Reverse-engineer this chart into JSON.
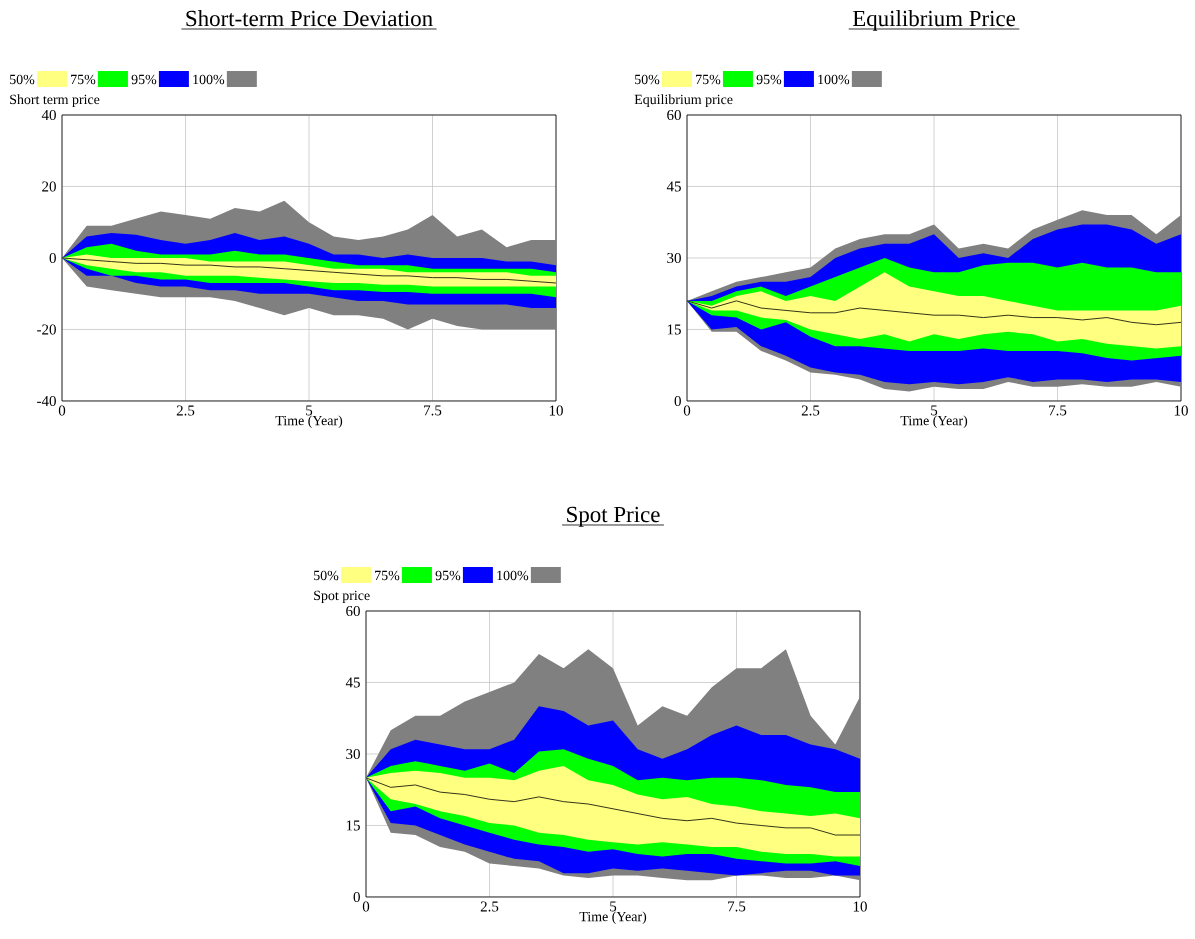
{
  "chart_data": [
    {
      "type": "line",
      "title": "Short-term Price Deviation",
      "ylabel": "Short term price",
      "xlabel": "Time (Year)",
      "x": [
        0,
        0.5,
        1,
        1.5,
        2,
        2.5,
        3,
        3.5,
        4,
        4.5,
        5,
        5.5,
        6,
        6.5,
        7,
        7.5,
        8,
        8.5,
        9,
        9.5,
        10
      ],
      "xlim": [
        0,
        10
      ],
      "ylim": [
        -40,
        40
      ],
      "xticks": [
        0,
        2.5,
        5,
        7.5,
        10
      ],
      "yticks": [
        -40,
        -20,
        0,
        20,
        40
      ],
      "grid": true,
      "legend": "top left",
      "series": [
        {
          "name": "50%",
          "color": "#ffff80",
          "values": [
            null,
            null,
            null,
            null,
            null,
            null,
            null,
            null,
            null,
            null,
            null,
            null,
            null,
            null,
            null,
            null,
            null,
            null,
            null,
            null,
            null
          ],
          "upper": [
            0,
            1,
            0,
            0,
            0,
            0,
            -1,
            -1,
            -1,
            -1,
            -2,
            -3,
            -3,
            -3,
            -4,
            -4,
            -4,
            -4,
            -4,
            -5,
            -5
          ],
          "lower": [
            0,
            -2,
            -3,
            -4,
            -4,
            -5,
            -5,
            -5,
            -5.5,
            -6,
            -6.5,
            -7,
            -7,
            -7.5,
            -7.5,
            -8,
            -8,
            -8,
            -8,
            -8,
            -8
          ]
        },
        {
          "name": "75%",
          "color": "#00ff00",
          "values": [
            null,
            null,
            null,
            null,
            null,
            null,
            null,
            null,
            null,
            null,
            null,
            null,
            null,
            null,
            null,
            null,
            null,
            null,
            null,
            null,
            null
          ],
          "upper": [
            0,
            3,
            4,
            2,
            1,
            1,
            1,
            2,
            1,
            1,
            0,
            -1,
            -2,
            -2,
            -2,
            -3,
            -3,
            -3,
            -3,
            -3,
            -4
          ],
          "lower": [
            0,
            -3,
            -5,
            -5,
            -6,
            -6,
            -7,
            -7,
            -7,
            -7,
            -8,
            -9,
            -9,
            -9.5,
            -9.5,
            -10,
            -10,
            -10,
            -10,
            -10,
            -11
          ]
        },
        {
          "name": "95%",
          "color": "#0000ff",
          "values": [
            null,
            null,
            null,
            null,
            null,
            null,
            null,
            null,
            null,
            null,
            null,
            null,
            null,
            null,
            null,
            null,
            null,
            null,
            null,
            null,
            null
          ],
          "upper": [
            0,
            6,
            7,
            6.5,
            5,
            4,
            5,
            7,
            5,
            6,
            4,
            1,
            1,
            0,
            1,
            0,
            0,
            0,
            -1,
            -1,
            -2
          ],
          "lower": [
            0,
            -5,
            -5,
            -7,
            -8,
            -8,
            -9,
            -9,
            -10,
            -10,
            -10,
            -11,
            -12,
            -12,
            -13,
            -13,
            -13,
            -13,
            -13,
            -14,
            -14
          ]
        },
        {
          "name": "100%",
          "color": "#808080",
          "values": [
            null,
            null,
            null,
            null,
            null,
            null,
            null,
            null,
            null,
            null,
            null,
            null,
            null,
            null,
            null,
            null,
            null,
            null,
            null,
            null,
            null
          ],
          "upper": [
            0,
            9,
            9,
            11,
            13,
            12,
            11,
            14,
            13,
            16,
            10,
            6,
            5,
            6,
            8,
            12,
            6,
            8,
            3,
            5,
            5
          ],
          "lower": [
            0,
            -8,
            -9,
            -10,
            -11,
            -11,
            -11,
            -12,
            -14,
            -16,
            -14,
            -16,
            -16,
            -17,
            -20,
            -17,
            -19,
            -20,
            -20,
            -20,
            -20
          ]
        },
        {
          "color": "#000000",
          "values": [
            0,
            -0.5,
            -1,
            -1.5,
            -1.5,
            -2,
            -2,
            -2.5,
            -2.5,
            -3,
            -3.5,
            -4,
            -4.5,
            -5,
            -5,
            -5.5,
            -5.5,
            -6,
            -6,
            -6.5,
            -7
          ]
        }
      ]
    },
    {
      "type": "line",
      "title": "Equilibrium Price",
      "ylabel": "Equilibrium price",
      "xlabel": "Time (Year)",
      "x": [
        0,
        0.5,
        1,
        1.5,
        2,
        2.5,
        3,
        3.5,
        4,
        4.5,
        5,
        5.5,
        6,
        6.5,
        7,
        7.5,
        8,
        8.5,
        9,
        9.5,
        10
      ],
      "xlim": [
        0,
        10
      ],
      "ylim": [
        0,
        60
      ],
      "xticks": [
        0,
        2.5,
        5,
        7.5,
        10
      ],
      "yticks": [
        0,
        15,
        30,
        45,
        60
      ],
      "grid": true,
      "legend": "top left",
      "series": [
        {
          "name": "50%",
          "color": "#ffff80",
          "values": [
            null,
            null,
            null,
            null,
            null,
            null,
            null,
            null,
            null,
            null,
            null,
            null,
            null,
            null,
            null,
            null,
            null,
            null,
            null,
            null,
            null
          ],
          "upper": [
            21,
            20,
            22,
            23,
            21,
            22,
            21,
            24,
            27,
            24,
            23,
            22,
            22,
            21,
            20,
            19,
            19,
            19,
            19,
            19,
            20
          ],
          "lower": [
            21,
            19,
            19,
            17.5,
            17,
            15,
            14,
            13,
            14,
            12.5,
            14,
            13,
            14,
            14.5,
            14,
            12.5,
            13,
            12,
            11.5,
            11,
            11.5
          ]
        },
        {
          "name": "75%",
          "color": "#00ff00",
          "values": [
            null,
            null,
            null,
            null,
            null,
            null,
            null,
            null,
            null,
            null,
            null,
            null,
            null,
            null,
            null,
            null,
            null,
            null,
            null,
            null,
            null
          ],
          "upper": [
            21,
            21,
            23,
            24,
            22,
            24,
            26,
            28,
            30,
            28,
            27,
            27,
            28.5,
            29,
            29,
            28,
            29,
            28,
            28,
            27,
            27
          ],
          "lower": [
            21,
            18,
            17.5,
            15,
            16.5,
            13.5,
            11.5,
            11.5,
            11,
            10.5,
            10.5,
            10.5,
            11,
            10.5,
            10.5,
            10.5,
            10,
            9,
            8.5,
            9,
            9.5
          ]
        },
        {
          "name": "95%",
          "color": "#0000ff",
          "values": [
            null,
            null,
            null,
            null,
            null,
            null,
            null,
            null,
            null,
            null,
            null,
            null,
            null,
            null,
            null,
            null,
            null,
            null,
            null,
            null,
            null
          ],
          "upper": [
            21,
            22,
            24,
            25,
            25,
            26,
            30,
            32,
            33,
            33,
            35,
            30,
            31,
            30,
            34,
            36,
            37,
            37,
            36,
            33,
            35
          ],
          "lower": [
            21,
            15,
            15.5,
            11.5,
            9.5,
            7,
            6,
            5.5,
            4,
            3.5,
            4,
            3.5,
            4,
            5,
            4,
            4.5,
            4.5,
            4,
            4.5,
            4.5,
            4
          ]
        },
        {
          "name": "100%",
          "color": "#808080",
          "values": [
            null,
            null,
            null,
            null,
            null,
            null,
            null,
            null,
            null,
            null,
            null,
            null,
            null,
            null,
            null,
            null,
            null,
            null,
            null,
            null,
            null
          ],
          "upper": [
            21,
            23,
            25,
            26,
            27,
            28,
            32,
            34,
            35,
            35,
            37,
            32,
            33,
            32,
            36,
            38,
            40,
            39,
            39,
            35,
            39
          ],
          "lower": [
            21,
            14.5,
            14.5,
            10.5,
            8.5,
            6,
            5.5,
            4.5,
            2.5,
            2,
            3,
            2.5,
            2.5,
            4,
            3,
            3,
            3.5,
            3,
            3,
            4,
            3
          ]
        },
        {
          "color": "#000000",
          "values": [
            21,
            19.5,
            21,
            19.5,
            19,
            18.5,
            18.5,
            19.5,
            19,
            18.5,
            18,
            18,
            17.5,
            18,
            17.5,
            17.5,
            17,
            17.5,
            16.5,
            16,
            16.5
          ]
        }
      ]
    },
    {
      "type": "line",
      "title": "Spot Price",
      "ylabel": "Spot price",
      "xlabel": "Time (Year)",
      "x": [
        0,
        0.5,
        1,
        1.5,
        2,
        2.5,
        3,
        3.5,
        4,
        4.5,
        5,
        5.5,
        6,
        6.5,
        7,
        7.5,
        8,
        8.5,
        9,
        9.5,
        10
      ],
      "xlim": [
        0,
        10
      ],
      "ylim": [
        0,
        60
      ],
      "xticks": [
        0,
        2.5,
        5,
        7.5,
        10
      ],
      "yticks": [
        0,
        15,
        30,
        45,
        60
      ],
      "grid": true,
      "legend": "top left",
      "series": [
        {
          "name": "50%",
          "color": "#ffff80",
          "values": [
            null,
            null,
            null,
            null,
            null,
            null,
            null,
            null,
            null,
            null,
            null,
            null,
            null,
            null,
            null,
            null,
            null,
            null,
            null,
            null,
            null
          ],
          "upper": [
            25,
            26,
            26.5,
            26,
            25,
            25,
            24.5,
            26.5,
            27.5,
            24.5,
            23.5,
            21.5,
            20.5,
            21,
            19.5,
            19,
            18,
            17.5,
            17,
            17.5,
            16.5
          ],
          "lower": [
            25,
            20.5,
            19.5,
            18,
            17,
            15.5,
            15,
            13.5,
            13,
            12,
            11.5,
            11,
            11.5,
            11,
            10.5,
            10.5,
            9.5,
            9,
            9,
            8.5,
            8.5
          ]
        },
        {
          "name": "75%",
          "color": "#00ff00",
          "values": [
            null,
            null,
            null,
            null,
            null,
            null,
            null,
            null,
            null,
            null,
            null,
            null,
            null,
            null,
            null,
            null,
            null,
            null,
            null,
            null,
            null
          ],
          "upper": [
            25,
            27.5,
            28.5,
            27.5,
            26.5,
            28,
            26,
            30.5,
            31,
            29,
            27.5,
            24.5,
            25,
            24.5,
            25,
            25,
            24.5,
            23.5,
            23,
            22,
            22
          ],
          "lower": [
            25,
            18,
            19,
            16.5,
            15,
            13.5,
            12,
            11,
            10.5,
            9.5,
            10,
            9,
            8.5,
            9,
            9,
            8,
            7.5,
            7,
            7,
            7.5,
            6.5
          ]
        },
        {
          "name": "95%",
          "color": "#0000ff",
          "values": [
            null,
            null,
            null,
            null,
            null,
            null,
            null,
            null,
            null,
            null,
            null,
            null,
            null,
            null,
            null,
            null,
            null,
            null,
            null,
            null,
            null
          ],
          "upper": [
            25,
            31,
            33,
            32,
            31,
            31,
            33,
            40,
            39,
            36,
            37,
            31,
            29,
            31,
            34,
            36,
            34,
            34,
            32,
            31,
            29
          ],
          "lower": [
            25,
            15.5,
            15,
            13,
            11,
            9.5,
            8,
            7.5,
            5,
            5,
            6,
            5.5,
            6,
            5.5,
            5,
            4.5,
            5,
            5.5,
            5.5,
            4.5,
            4.5
          ]
        },
        {
          "name": "100%",
          "color": "#808080",
          "values": [
            null,
            null,
            null,
            null,
            null,
            null,
            null,
            null,
            null,
            null,
            null,
            null,
            null,
            null,
            null,
            null,
            null,
            null,
            null,
            null,
            null
          ],
          "upper": [
            25,
            35,
            38,
            38,
            41,
            43,
            45,
            51,
            48,
            52,
            48,
            36,
            40,
            38,
            44,
            48,
            48,
            52,
            38,
            32,
            42
          ],
          "lower": [
            25,
            13.5,
            13,
            10.5,
            9.5,
            7,
            6.5,
            6,
            4.5,
            4,
            4.5,
            4.5,
            4,
            3.5,
            3.5,
            4.5,
            4.5,
            4,
            4,
            4.5,
            3.5
          ]
        },
        {
          "color": "#000000",
          "values": [
            25,
            23,
            23.5,
            22,
            21.5,
            20.5,
            20,
            21,
            20,
            19.5,
            18.5,
            17.5,
            16.5,
            16,
            16.5,
            15.5,
            15,
            14.5,
            14.5,
            13,
            13
          ]
        }
      ]
    }
  ]
}
